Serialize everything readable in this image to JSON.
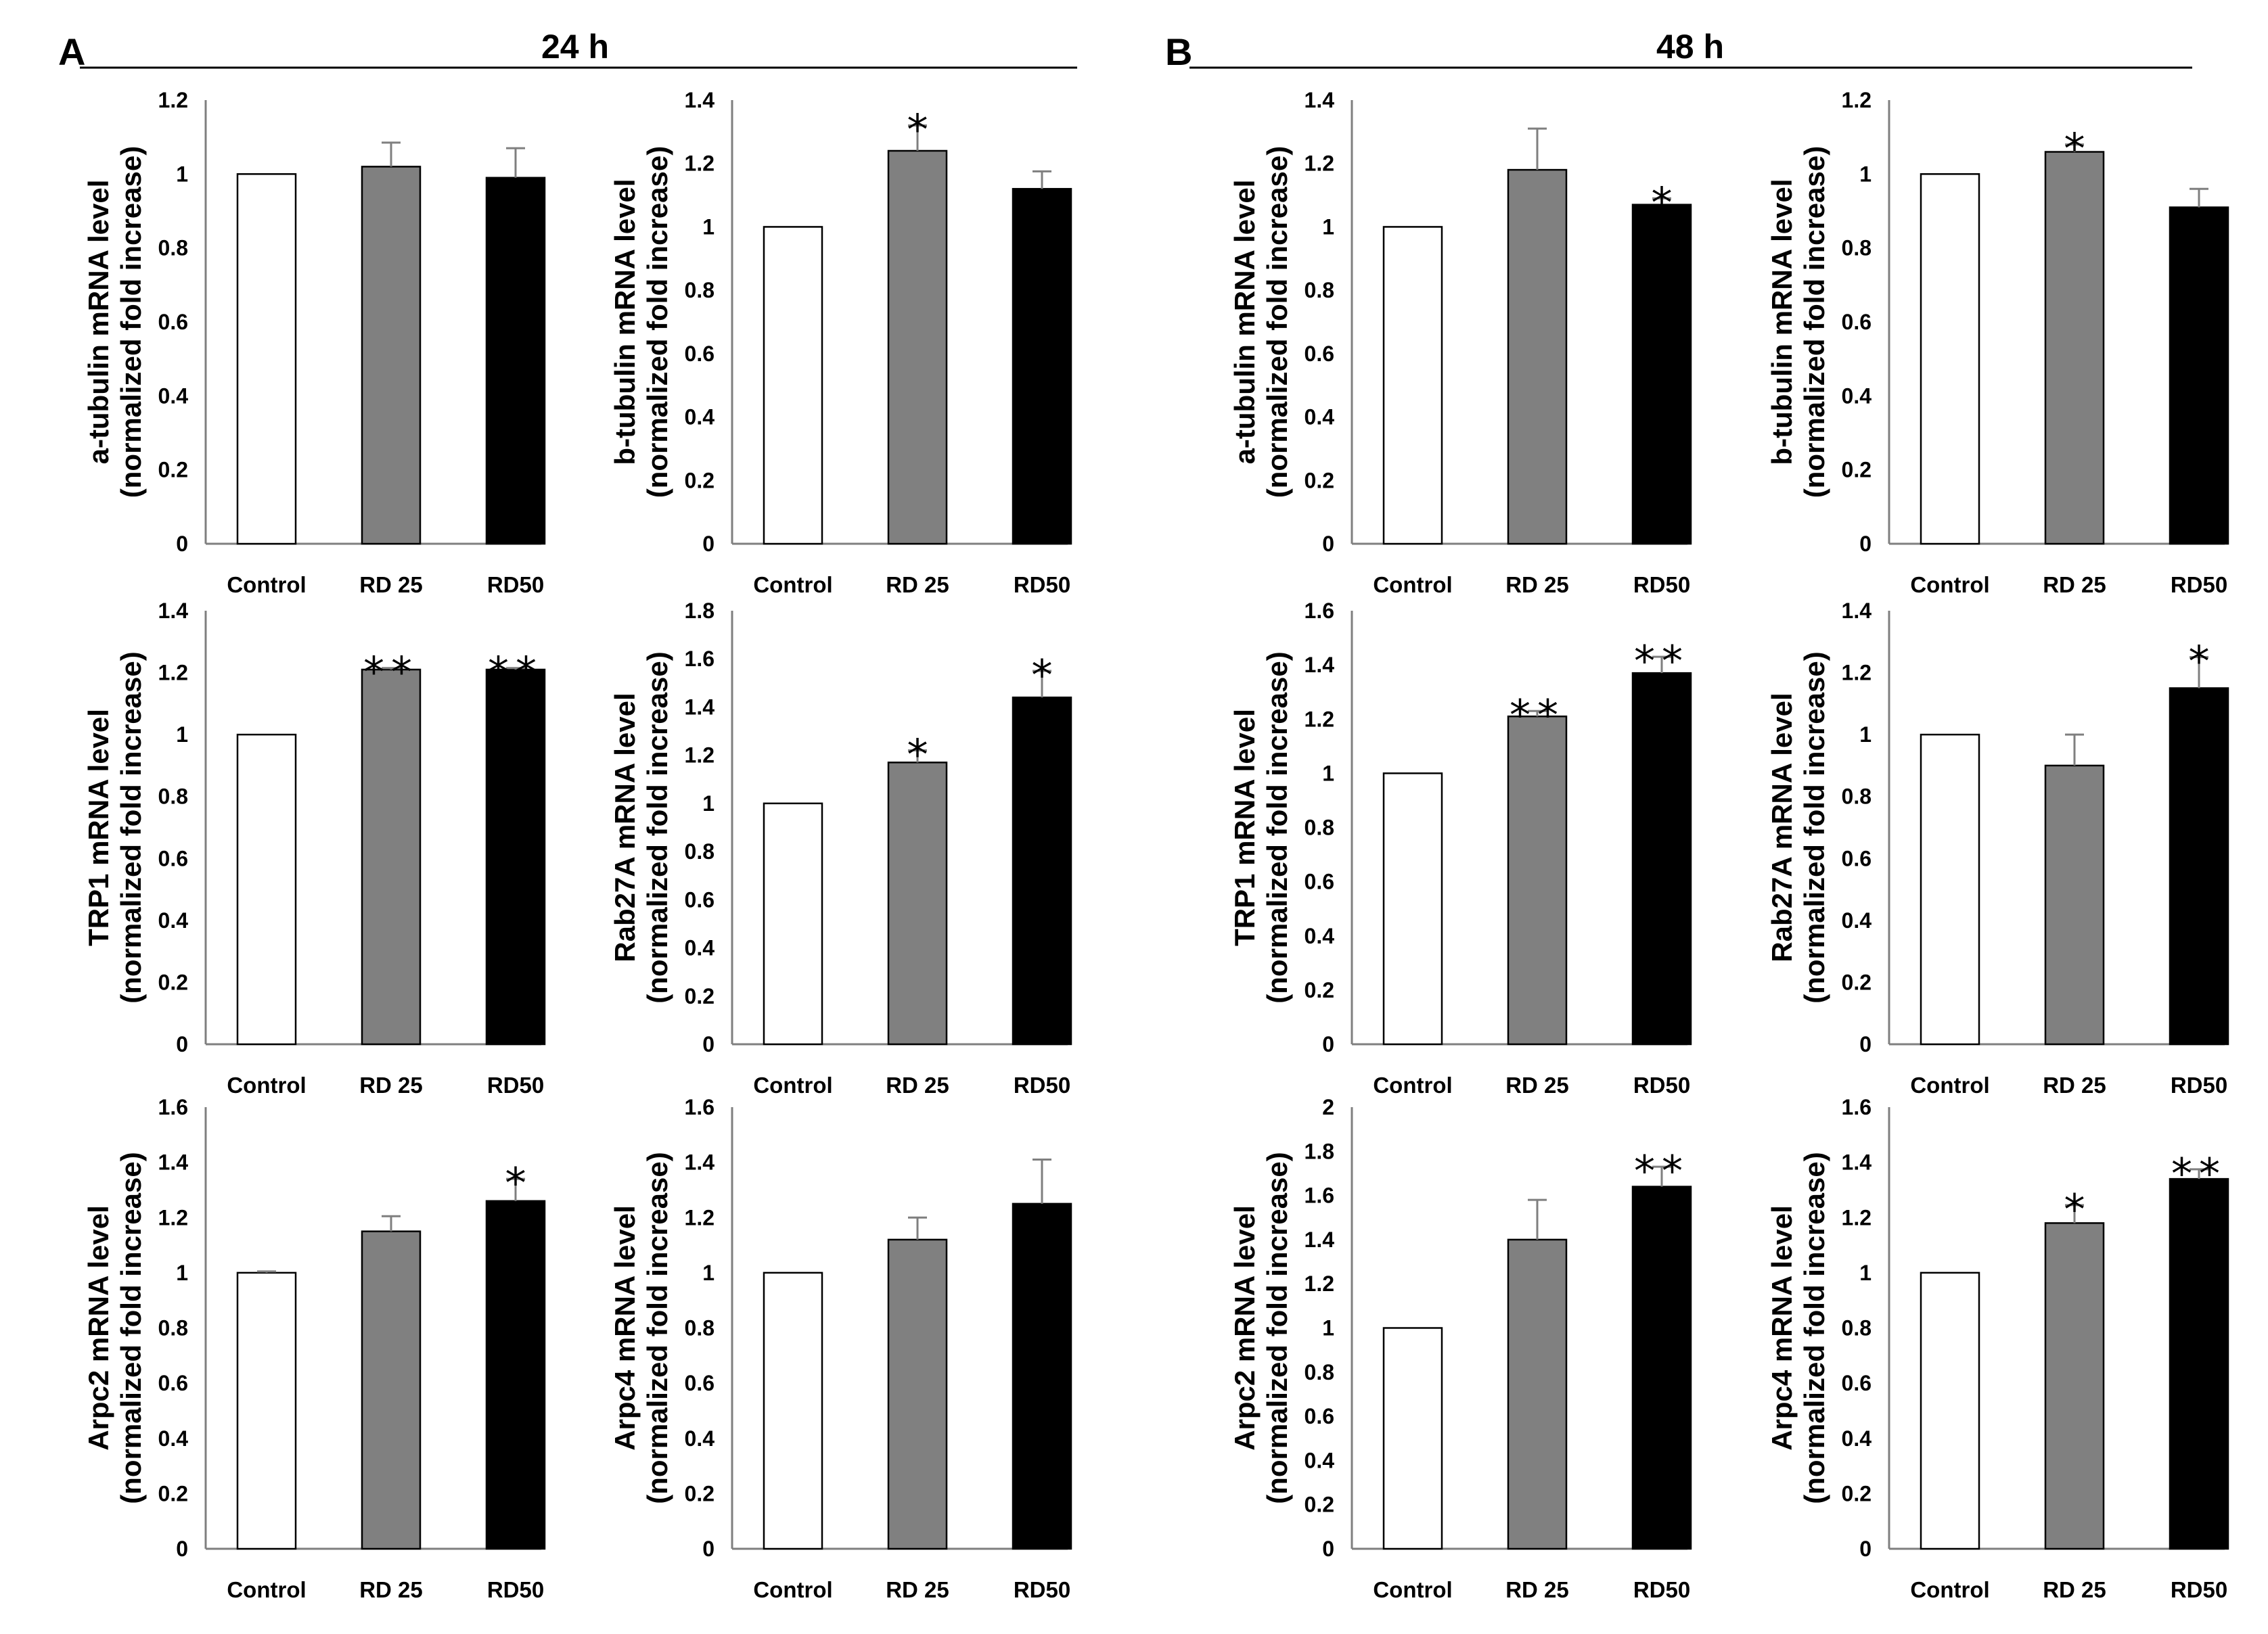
{
  "panels": [
    {
      "letter": "A",
      "title": "24 h"
    },
    {
      "letter": "B",
      "title": "48 h"
    }
  ],
  "colors": {
    "control": "#ffffff",
    "rd25": "#808080",
    "rd50": "#000000",
    "axis": "#7f7f7f",
    "outline": "#000000"
  },
  "chart_data": [
    {
      "type": "bar",
      "panel": "A",
      "row": 1,
      "col": 1,
      "categories": [
        "Control",
        "RD 25",
        "RD50"
      ],
      "ylabel": [
        "a-tubulin mRNA level",
        "(normalized fold increase)"
      ],
      "ylim": [
        0,
        1.2
      ],
      "step": 0.2,
      "yticks": [
        "0",
        "0.2",
        "0.4",
        "0.6",
        "0.8",
        "1",
        "1.2"
      ],
      "values": [
        1.0,
        1.02,
        0.99
      ],
      "errors": [
        0.0,
        0.065,
        0.08
      ],
      "sig": [
        "",
        "",
        ""
      ]
    },
    {
      "type": "bar",
      "panel": "A",
      "row": 1,
      "col": 2,
      "categories": [
        "Control",
        "RD 25",
        "RD50"
      ],
      "ylabel": [
        "b-tubulin mRNA level",
        "(normalized fold increase)"
      ],
      "ylim": [
        0,
        1.4
      ],
      "step": 0.2,
      "yticks": [
        "0",
        "0.2",
        "0.4",
        "0.6",
        "0.8",
        "1",
        "1.2",
        "1.4"
      ],
      "values": [
        1.0,
        1.24,
        1.12
      ],
      "errors": [
        0.0,
        0.08,
        0.055
      ],
      "sig": [
        "",
        "*",
        ""
      ]
    },
    {
      "type": "bar",
      "panel": "B",
      "row": 1,
      "col": 1,
      "categories": [
        "Control",
        "RD 25",
        "RD50"
      ],
      "ylabel": [
        "a-tubulin mRNA level",
        "(normalized fold increase)"
      ],
      "ylim": [
        0,
        1.4
      ],
      "step": 0.2,
      "yticks": [
        "0",
        "0.2",
        "0.4",
        "0.6",
        "0.8",
        "1",
        "1.2",
        "1.4"
      ],
      "values": [
        1.0,
        1.18,
        1.07
      ],
      "errors": [
        0.0,
        0.13,
        0.02
      ],
      "sig": [
        "",
        "",
        "*"
      ]
    },
    {
      "type": "bar",
      "panel": "B",
      "row": 1,
      "col": 2,
      "categories": [
        "Control",
        "RD 25",
        "RD50"
      ],
      "ylabel": [
        "b-tubulin mRNA level",
        "(normalized fold increase)"
      ],
      "ylim": [
        0,
        1.2
      ],
      "step": 0.2,
      "yticks": [
        "0",
        "0.2",
        "0.4",
        "0.6",
        "0.8",
        "1",
        "1.2"
      ],
      "values": [
        1.0,
        1.06,
        0.91
      ],
      "errors": [
        0.0,
        0.02,
        0.05
      ],
      "sig": [
        "",
        "*",
        ""
      ]
    },
    {
      "type": "bar",
      "panel": "A",
      "row": 2,
      "col": 1,
      "categories": [
        "Control",
        "RD 25",
        "RD50"
      ],
      "ylabel": [
        "TRP1 mRNA level",
        "(normalized fold increase)"
      ],
      "ylim": [
        0,
        1.4
      ],
      "step": 0.2,
      "yticks": [
        "0",
        "0.2",
        "0.4",
        "0.6",
        "0.8",
        "1",
        "1.2",
        "1.4"
      ],
      "values": [
        1.0,
        1.21,
        1.21
      ],
      "errors": [
        0.0,
        0.005,
        0.005
      ],
      "sig": [
        "",
        "**",
        "**"
      ]
    },
    {
      "type": "bar",
      "panel": "A",
      "row": 2,
      "col": 2,
      "categories": [
        "Control",
        "RD 25",
        "RD50"
      ],
      "ylabel": [
        "Rab27A mRNA level",
        "(normalized fold increase)"
      ],
      "ylim": [
        0,
        1.8
      ],
      "step": 0.2,
      "yticks": [
        "0",
        "0.2",
        "0.4",
        "0.6",
        "0.8",
        "1",
        "1.2",
        "1.4",
        "1.6",
        "1.8"
      ],
      "values": [
        1.0,
        1.17,
        1.44
      ],
      "errors": [
        0.0,
        0.05,
        0.11
      ],
      "sig": [
        "",
        "*",
        "*"
      ]
    },
    {
      "type": "bar",
      "panel": "B",
      "row": 2,
      "col": 1,
      "categories": [
        "Control",
        "RD 25",
        "RD50"
      ],
      "ylabel": [
        "TRP1 mRNA level",
        "(normalized fold increase)"
      ],
      "ylim": [
        0,
        1.6
      ],
      "step": 0.2,
      "yticks": [
        "0",
        "0.2",
        "0.4",
        "0.6",
        "0.8",
        "1",
        "1.2",
        "1.4",
        "1.6"
      ],
      "values": [
        1.0,
        1.21,
        1.37
      ],
      "errors": [
        0.0,
        0.02,
        0.06
      ],
      "sig": [
        "",
        "**",
        "**"
      ]
    },
    {
      "type": "bar",
      "panel": "B",
      "row": 2,
      "col": 2,
      "categories": [
        "Control",
        "RD 25",
        "RD50"
      ],
      "ylabel": [
        "Rab27A mRNA level",
        "(normalized fold increase)"
      ],
      "ylim": [
        0,
        1.4
      ],
      "step": 0.2,
      "yticks": [
        "0",
        "0.2",
        "0.4",
        "0.6",
        "0.8",
        "1",
        "1.2",
        "1.4"
      ],
      "values": [
        1.0,
        0.9,
        1.15
      ],
      "errors": [
        0.0,
        0.1,
        0.1
      ],
      "sig": [
        "",
        "",
        "*"
      ]
    },
    {
      "type": "bar",
      "panel": "A",
      "row": 3,
      "col": 1,
      "categories": [
        "Control",
        "RD 25",
        "RD50"
      ],
      "ylabel": [
        "Arpc2 mRNA level",
        "(normalized fold increase)"
      ],
      "ylim": [
        0,
        1.6
      ],
      "step": 0.2,
      "yticks": [
        "0",
        "0.2",
        "0.4",
        "0.6",
        "0.8",
        "1",
        "1.2",
        "1.4",
        "1.6"
      ],
      "values": [
        1.0,
        1.15,
        1.26
      ],
      "errors": [
        0.005,
        0.055,
        0.08
      ],
      "sig": [
        "",
        "",
        "*"
      ]
    },
    {
      "type": "bar",
      "panel": "A",
      "row": 3,
      "col": 2,
      "categories": [
        "Control",
        "RD 25",
        "RD50"
      ],
      "ylabel": [
        "Arpc4 mRNA level",
        "(normalized fold increase)"
      ],
      "ylim": [
        0,
        1.6
      ],
      "step": 0.2,
      "yticks": [
        "0",
        "0.2",
        "0.4",
        "0.6",
        "0.8",
        "1",
        "1.2",
        "1.4",
        "1.6"
      ],
      "values": [
        1.0,
        1.12,
        1.25
      ],
      "errors": [
        0.0,
        0.08,
        0.16
      ],
      "sig": [
        "",
        "",
        ""
      ]
    },
    {
      "type": "bar",
      "panel": "B",
      "row": 3,
      "col": 1,
      "categories": [
        "Control",
        "RD 25",
        "RD50"
      ],
      "ylabel": [
        "Arpc2 mRNA level",
        "(normalized fold increase)"
      ],
      "ylim": [
        0,
        2
      ],
      "step": 0.2,
      "yticks": [
        "0",
        "0.2",
        "0.4",
        "0.6",
        "0.8",
        "1",
        "1.2",
        "1.4",
        "1.6",
        "1.8",
        "2"
      ],
      "values": [
        1.0,
        1.4,
        1.64
      ],
      "errors": [
        0.0,
        0.18,
        0.09
      ],
      "sig": [
        "",
        "",
        "**"
      ]
    },
    {
      "type": "bar",
      "panel": "B",
      "row": 3,
      "col": 2,
      "categories": [
        "Control",
        "RD 25",
        "RD50"
      ],
      "ylabel": [
        "Arpc4 mRNA level",
        "(normalized fold increase)"
      ],
      "ylim": [
        0,
        1.6
      ],
      "step": 0.2,
      "yticks": [
        "0",
        "0.2",
        "0.4",
        "0.6",
        "0.8",
        "1",
        "1.2",
        "1.4",
        "1.6"
      ],
      "values": [
        1.0,
        1.18,
        1.34
      ],
      "errors": [
        0.0,
        0.065,
        0.035
      ],
      "sig": [
        "",
        "*",
        "**"
      ]
    }
  ]
}
